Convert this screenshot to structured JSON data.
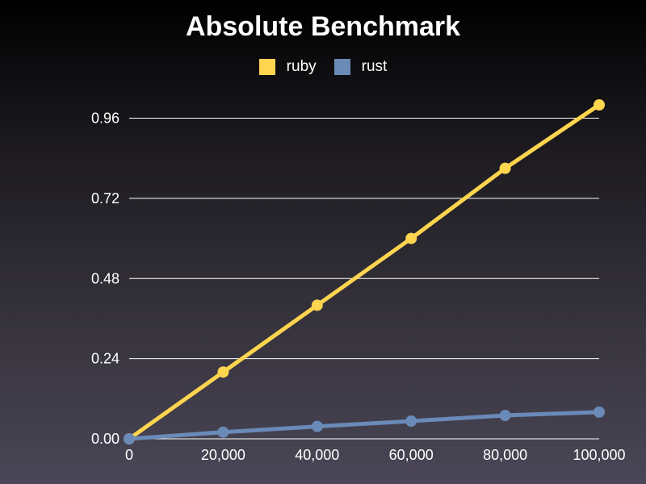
{
  "chart_data": {
    "type": "line",
    "title": "Absolute Benchmark",
    "xlabel": "",
    "ylabel": "",
    "x": [
      0,
      20000,
      40000,
      60000,
      80000,
      100000
    ],
    "x_tick_labels": [
      "0",
      "20,000",
      "40,000",
      "60,000",
      "80,000",
      "100,000"
    ],
    "xlim": [
      0,
      100000
    ],
    "ylim": [
      0,
      1.0
    ],
    "y_ticks": [
      0,
      0.24,
      0.48,
      0.72,
      0.96
    ],
    "y_tick_labels": [
      "0.00",
      "0.24",
      "0.48",
      "0.72",
      "0.96"
    ],
    "grid": "horizontal",
    "legend_position": "top",
    "series": [
      {
        "name": "ruby",
        "color": "#ffd54f",
        "values": [
          0.0,
          0.2,
          0.4,
          0.6,
          0.81,
          1.0
        ]
      },
      {
        "name": "rust",
        "color": "#6a8ab8",
        "values": [
          0.0,
          0.02,
          0.037,
          0.053,
          0.07,
          0.08
        ]
      }
    ]
  }
}
